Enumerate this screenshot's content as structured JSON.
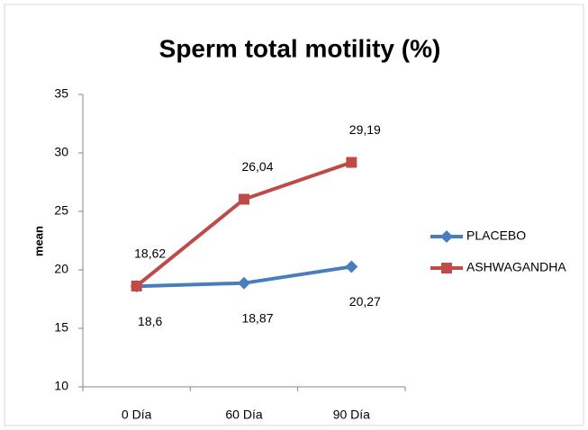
{
  "chart_data": {
    "type": "line",
    "title": "Sperm total motility (%)",
    "y_label": "mean",
    "categories": [
      "0 Día",
      "60 Día",
      "90 Día"
    ],
    "series": [
      {
        "name": "PLACEBO",
        "color": "#4a7ebb",
        "marker": "diamond",
        "values": [
          18.6,
          18.87,
          20.27
        ],
        "value_labels": [
          "18,6",
          "18,87",
          "20,27"
        ]
      },
      {
        "name": "ASHWAGANDHA",
        "color": "#be4b48",
        "marker": "square",
        "values": [
          18.62,
          26.04,
          29.19
        ],
        "value_labels": [
          "18,62",
          "26,04",
          "29,19"
        ]
      }
    ],
    "ylim": [
      10,
      35
    ],
    "yticks": [
      10,
      15,
      20,
      25,
      30,
      35
    ],
    "grid": false,
    "legend": "right"
  }
}
